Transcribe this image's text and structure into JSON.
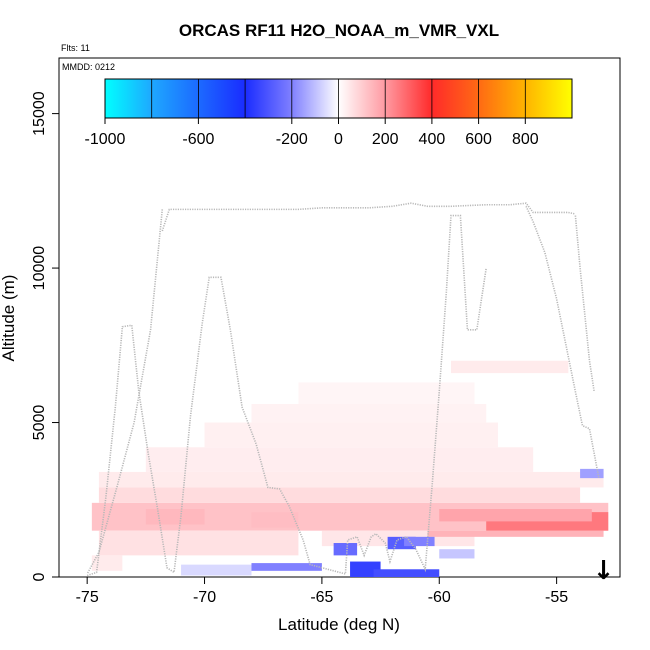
{
  "chart_data": {
    "type": "heatmap",
    "title": "ORCAS RF11 H2O_NOAA_m_VMR_VXL",
    "flights_label": "Flts: 11",
    "mmdd_label": "MMDD: 0212",
    "xlabel": "Latitude (deg N)",
    "ylabel": "Altitude (m)",
    "xlim": [
      -76.2,
      -52.3
    ],
    "ylim": [
      0,
      16800
    ],
    "x_ticks": [
      -75,
      -70,
      -65,
      -60,
      -55
    ],
    "x_tick_labels": [
      "-75",
      "-70",
      "-65",
      "-60",
      "-55"
    ],
    "y_ticks": [
      0,
      5000,
      10000,
      15000
    ],
    "y_tick_labels": [
      "0",
      "5000",
      "10000",
      "15000"
    ],
    "colorbar": {
      "range": [
        -1000,
        1000
      ],
      "ticks": [
        -1000,
        -600,
        -200,
        0,
        200,
        400,
        600,
        800
      ],
      "tick_labels": [
        "-1000",
        "-600",
        "-200",
        "0",
        "200",
        "400",
        "600",
        "800"
      ],
      "stops": [
        {
          "v": -1000,
          "c": "#00ffff"
        },
        {
          "v": -800,
          "c": "#1ea8ff"
        },
        {
          "v": -400,
          "c": "#1a2cff"
        },
        {
          "v": -200,
          "c": "#8080ff"
        },
        {
          "v": 0,
          "c": "#ffffff"
        },
        {
          "v": 200,
          "c": "#ff9aa2"
        },
        {
          "v": 400,
          "c": "#ff2a2a"
        },
        {
          "v": 600,
          "c": "#ff6a14"
        },
        {
          "v": 800,
          "c": "#ffb400"
        },
        {
          "v": 1000,
          "c": "#ffff00"
        }
      ]
    },
    "anomaly_cells": [
      {
        "lon0": -74.8,
        "lon1": -52.8,
        "alt0": 1500,
        "alt1": 2400,
        "value": 120
      },
      {
        "lon0": -74.5,
        "lon1": -54.0,
        "alt0": 2400,
        "alt1": 2900,
        "value": 70
      },
      {
        "lon0": -74.5,
        "lon1": -53.0,
        "alt0": 2900,
        "alt1": 3400,
        "value": 40
      },
      {
        "lon0": -72.5,
        "lon1": -56.0,
        "alt0": 3400,
        "alt1": 4200,
        "value": 35
      },
      {
        "lon0": -70.0,
        "lon1": -57.5,
        "alt0": 4200,
        "alt1": 5000,
        "value": 30
      },
      {
        "lon0": -68.0,
        "lon1": -58.0,
        "alt0": 5000,
        "alt1": 5600,
        "value": 25
      },
      {
        "lon0": -66.0,
        "lon1": -58.5,
        "alt0": 5600,
        "alt1": 6300,
        "value": 20
      },
      {
        "lon0": -59.5,
        "lon1": -54.5,
        "alt0": 6600,
        "alt1": 7000,
        "value": 40
      },
      {
        "lon0": -74.5,
        "lon1": -66.0,
        "alt0": 700,
        "alt1": 1500,
        "value": 60
      },
      {
        "lon0": -65.0,
        "lon1": -58.5,
        "alt0": 1000,
        "alt1": 1500,
        "value": 50
      },
      {
        "lon0": -60.5,
        "lon1": -53.0,
        "alt0": 1300,
        "alt1": 1500,
        "value": 150
      },
      {
        "lon0": -58.0,
        "lon1": -52.8,
        "alt0": 1500,
        "alt1": 2100,
        "value": 260
      },
      {
        "lon0": -60.0,
        "lon1": -53.5,
        "alt0": 1800,
        "alt1": 2200,
        "value": 180
      },
      {
        "lon0": -74.8,
        "lon1": -73.5,
        "alt0": 200,
        "alt1": 700,
        "value": 40
      },
      {
        "lon0": -72.5,
        "lon1": -70.0,
        "alt0": 1700,
        "alt1": 2200,
        "value": 140
      },
      {
        "lon0": -68.0,
        "lon1": -66.0,
        "alt0": 1600,
        "alt1": 2100,
        "value": 130
      },
      {
        "lon0": -71.0,
        "lon1": -68.0,
        "alt0": 50,
        "alt1": 400,
        "value": -60
      },
      {
        "lon0": -68.0,
        "lon1": -65.0,
        "alt0": 200,
        "alt1": 450,
        "value": -200
      },
      {
        "lon0": -63.8,
        "lon1": -62.5,
        "alt0": 0,
        "alt1": 500,
        "value": -350
      },
      {
        "lon0": -64.5,
        "lon1": -63.5,
        "alt0": 700,
        "alt1": 1100,
        "value": -250
      },
      {
        "lon0": -62.2,
        "lon1": -61.0,
        "alt0": 900,
        "alt1": 1300,
        "value": -280
      },
      {
        "lon0": -62.8,
        "lon1": -60.0,
        "alt0": 0,
        "alt1": 250,
        "value": -320
      },
      {
        "lon0": -61.5,
        "lon1": -60.2,
        "alt0": 1000,
        "alt1": 1300,
        "value": -200
      },
      {
        "lon0": -60.0,
        "lon1": -58.5,
        "alt0": 600,
        "alt1": 900,
        "value": -90
      },
      {
        "lon0": -54.0,
        "lon1": -53.0,
        "alt0": 3200,
        "alt1": 3500,
        "value": -150
      }
    ],
    "flight_track": [
      [
        -75.0,
        50
      ],
      [
        -74.6,
        150
      ],
      [
        -74.2,
        2600
      ],
      [
        -73.8,
        5500
      ],
      [
        -73.5,
        8100
      ],
      [
        -73.1,
        8150
      ],
      [
        -72.8,
        6000
      ],
      [
        -72.4,
        4000
      ],
      [
        -72.0,
        2200
      ],
      [
        -71.6,
        300
      ],
      [
        -71.3,
        150
      ],
      [
        -71.0,
        2000
      ],
      [
        -70.6,
        5200
      ],
      [
        -70.1,
        8200
      ],
      [
        -69.8,
        9700
      ],
      [
        -69.3,
        9700
      ],
      [
        -68.9,
        8000
      ],
      [
        -68.4,
        5500
      ],
      [
        -67.8,
        4300
      ],
      [
        -67.3,
        2900
      ],
      [
        -66.8,
        2850
      ],
      [
        -66.4,
        2300
      ],
      [
        -65.8,
        1200
      ],
      [
        -65.5,
        400
      ],
      [
        -65.0,
        300
      ],
      [
        -64.5,
        200
      ],
      [
        -64.0,
        100
      ],
      [
        -63.9,
        1200
      ],
      [
        -63.5,
        1300
      ],
      [
        -63.2,
        700
      ],
      [
        -62.9,
        1300
      ],
      [
        -62.7,
        1400
      ],
      [
        -62.3,
        1100
      ],
      [
        -62.1,
        500
      ],
      [
        -61.8,
        1200
      ],
      [
        -61.4,
        1300
      ],
      [
        -61.0,
        900
      ],
      [
        -60.6,
        250
      ],
      [
        -60.3,
        3000
      ],
      [
        -60.0,
        6000
      ],
      [
        -59.7,
        9200
      ],
      [
        -59.5,
        11700
      ],
      [
        -59.1,
        11700
      ],
      [
        -58.8,
        8000
      ],
      [
        -58.4,
        8000
      ],
      [
        -58.0,
        10000
      ]
    ],
    "upper_track": [
      [
        -71.8,
        11200
      ],
      [
        -71.5,
        11900
      ],
      [
        -69.0,
        11900
      ],
      [
        -68.0,
        11900
      ],
      [
        -67.0,
        11900
      ],
      [
        -66.0,
        11900
      ],
      [
        -65.0,
        11950
      ],
      [
        -64.0,
        11950
      ],
      [
        -63.0,
        11950
      ],
      [
        -62.0,
        12000
      ],
      [
        -61.2,
        12100
      ],
      [
        -60.5,
        12000
      ],
      [
        -59.5,
        12000
      ],
      [
        -58.0,
        12050
      ],
      [
        -57.0,
        12050
      ],
      [
        -56.3,
        12100
      ],
      [
        -56.0,
        11800
      ],
      [
        -55.0,
        11800
      ],
      [
        -54.5,
        11800
      ],
      [
        -54.2,
        11750
      ]
    ],
    "descent_track": [
      [
        -71.8,
        11900
      ],
      [
        -72.3,
        8000
      ],
      [
        -73.0,
        5000
      ],
      [
        -73.7,
        3000
      ],
      [
        -74.5,
        800
      ],
      [
        -75.0,
        100
      ]
    ],
    "right_track": [
      [
        -56.3,
        12000
      ],
      [
        -56.0,
        11500
      ],
      [
        -55.5,
        10500
      ],
      [
        -55.0,
        9000
      ],
      [
        -54.6,
        7500
      ],
      [
        -54.2,
        6000
      ],
      [
        -53.9,
        4900
      ],
      [
        -53.6,
        4800
      ],
      [
        -53.4,
        4000
      ],
      [
        -53.2,
        3200
      ]
    ],
    "right_track2": [
      [
        -54.2,
        11700
      ],
      [
        -54.0,
        10000
      ],
      [
        -53.8,
        8500
      ],
      [
        -53.6,
        7000
      ],
      [
        -53.4,
        6000
      ]
    ],
    "arrow": {
      "lon": -53.0,
      "direction": "down",
      "glyph": "↓"
    }
  }
}
